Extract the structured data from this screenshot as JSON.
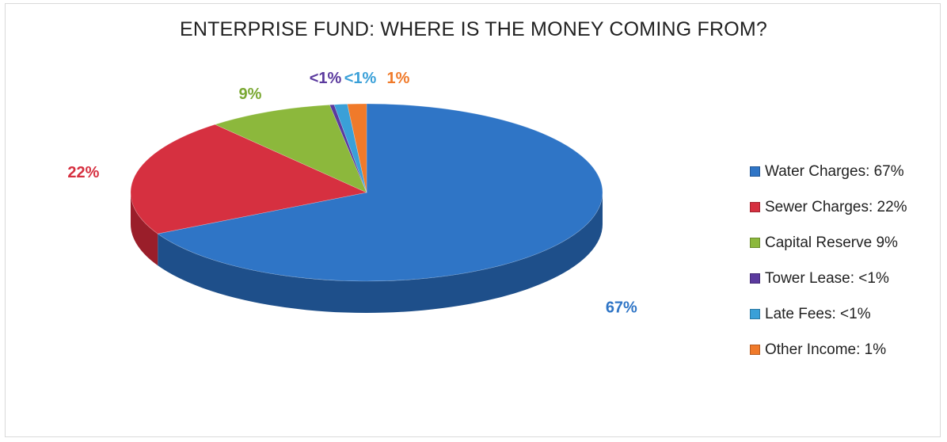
{
  "chart_data": {
    "type": "pie",
    "style": "3d",
    "title": "ENTERPRISE FUND: WHERE IS THE MONEY COMING FROM?",
    "legend_position": "right",
    "slices": [
      {
        "legend": "Water Charges: 67%",
        "label": "67%",
        "value": 67.3,
        "color": "#2f75c6",
        "side": "#1e4f8a"
      },
      {
        "legend": "Sewer Charges: 22%",
        "label": "22%",
        "value": 21.6,
        "color": "#d63040",
        "side": "#9a1e2a"
      },
      {
        "legend": "Capital Reserve 9%",
        "label": "9%",
        "value": 8.6,
        "color": "#8cb83c",
        "side": "#5f8127"
      },
      {
        "legend": "Tower Lease: <1%",
        "label": "<1%",
        "value": 0.3,
        "color": "#5b3a9e",
        "side": "#3a2466"
      },
      {
        "legend": "Late Fees: <1%",
        "label": "<1%",
        "value": 0.9,
        "color": "#3aa0d8",
        "side": "#236d96"
      },
      {
        "legend": "Other Income: 1%",
        "label": "1%",
        "value": 1.3,
        "color": "#f07a2a",
        "side": "#a8521a"
      }
    ],
    "label_colors": [
      "#2f75c6",
      "#d63040",
      "#7aa832",
      "#5b3a9e",
      "#3aa0d8",
      "#f07a2a"
    ]
  }
}
